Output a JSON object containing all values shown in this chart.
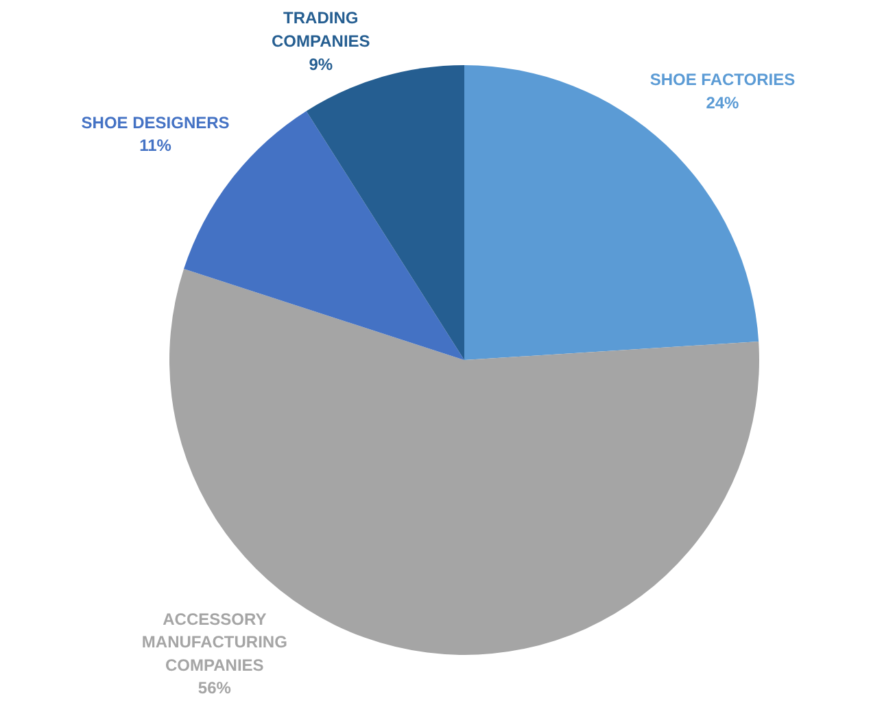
{
  "chart_data": {
    "type": "pie",
    "categories": [
      "SHOE FACTORIES",
      "ACCESSORY MANUFACTURING COMPANIES",
      "SHOE DESIGNERS",
      "TRADING COMPANIES"
    ],
    "values": [
      24,
      56,
      11,
      9
    ],
    "value_labels": [
      "24%",
      "56%",
      "11%",
      "9%"
    ],
    "colors": [
      "#5b9bd5",
      "#a5a5a5",
      "#4472c4",
      "#255e91"
    ]
  }
}
